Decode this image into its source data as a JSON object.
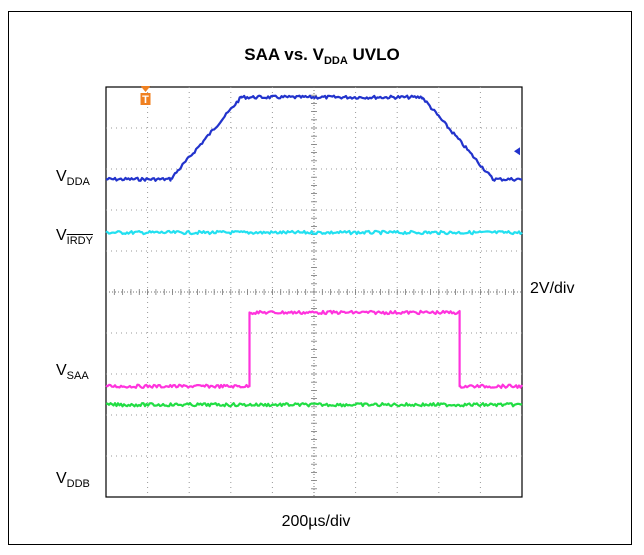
{
  "chart_data": {
    "type": "line",
    "title": {
      "prefix": "SAA vs. V",
      "sub": "DDA",
      "suffix": " UVLO"
    },
    "xlabel": "200µs/div",
    "volts_per_div_label": "2V/div",
    "divisions": {
      "x": 10,
      "y": 10
    },
    "time_per_div_us": 200,
    "volts_per_div": 2,
    "trigger_marker": "T",
    "channel_labels": [
      {
        "main": "V",
        "sub": "DDA",
        "overline": false
      },
      {
        "main": "V",
        "sub": "IRDY",
        "overline": true
      },
      {
        "main": "V",
        "sub": "SAA",
        "overline": false
      },
      {
        "main": "V",
        "sub": "DDB",
        "overline": false
      }
    ],
    "series": [
      {
        "key": "vdda",
        "color": "#2233cc",
        "x_div": [
          0,
          1.55,
          3.25,
          7.6,
          9.3,
          10
        ],
        "y_div": [
          2.75,
          2.75,
          4.75,
          4.75,
          2.75,
          2.75
        ]
      },
      {
        "key": "virdy",
        "color": "#22e0f0",
        "x_div": [
          0,
          10
        ],
        "y_div": [
          1.45,
          1.45
        ]
      },
      {
        "key": "vsaa",
        "color": "#ff33dd",
        "x_div": [
          0,
          3.45,
          3.45,
          8.5,
          8.5,
          10
        ],
        "y_div": [
          -2.3,
          -2.3,
          -0.5,
          -0.5,
          -2.3,
          -2.3
        ]
      },
      {
        "key": "vddb",
        "color": "#22dd44",
        "x_div": [
          0,
          10
        ],
        "y_div": [
          -2.75,
          -2.75
        ]
      }
    ]
  }
}
